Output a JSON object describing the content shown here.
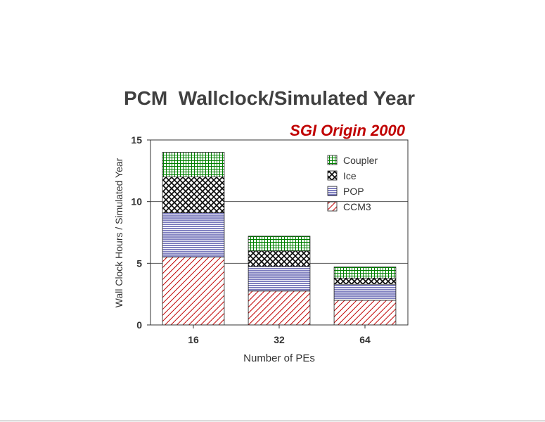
{
  "chart_data": {
    "type": "bar",
    "stacked": true,
    "title": "PCM  Wallclock/Simulated Year",
    "subtitle": "SGI Origin 2000",
    "xlabel": "Number of PEs",
    "ylabel": "Wall Clock Hours / Simulated Year",
    "categories": [
      "16",
      "32",
      "64"
    ],
    "ylim": [
      0,
      15
    ],
    "yticks": [
      0,
      5,
      10,
      15
    ],
    "grid": "horizontal",
    "legend_position": "top-right",
    "series": [
      {
        "name": "CCM3",
        "values": [
          5.5,
          2.75,
          2.0
        ],
        "color": "#c00000",
        "pattern": "diagonal"
      },
      {
        "name": "POP",
        "values": [
          3.6,
          2.0,
          1.3
        ],
        "color": "#000080",
        "pattern": "horizontal"
      },
      {
        "name": "Ice",
        "values": [
          2.9,
          1.25,
          0.5
        ],
        "color": "#000000",
        "pattern": "crosshatch"
      },
      {
        "name": "Coupler",
        "values": [
          2.0,
          1.2,
          0.9
        ],
        "color": "#008000",
        "pattern": "grid"
      }
    ],
    "legend_order": [
      "Coupler",
      "Ice",
      "POP",
      "CCM3"
    ]
  },
  "colors": {
    "title": "#404040",
    "subtitle": "#c00000",
    "axis": "#333333",
    "tick_label": "#333333"
  }
}
